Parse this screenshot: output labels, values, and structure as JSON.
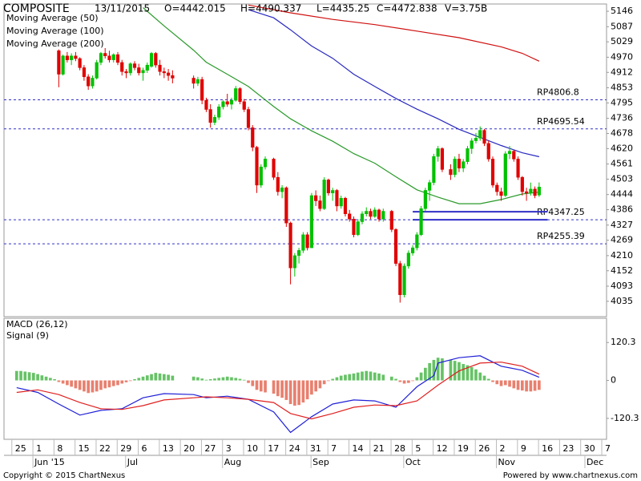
{
  "chart_data": {
    "type": "candlestick",
    "header": [
      "COMPOSITE",
      "13/11/2015",
      "O=4442.015",
      "H=4490.337",
      "L=4435.25",
      "C=4472.838",
      "V=3.75B"
    ],
    "x": [
      "2015-05-25",
      "2015-05-26",
      "2015-05-27",
      "2015-05-28",
      "2015-05-29",
      "2015-06-01",
      "2015-06-02",
      "2015-06-03",
      "2015-06-04",
      "2015-06-05",
      "2015-06-08",
      "2015-06-09",
      "2015-06-10",
      "2015-06-11",
      "2015-06-12",
      "2015-06-15",
      "2015-06-16",
      "2015-06-17",
      "2015-06-18",
      "2015-06-19",
      "2015-06-22",
      "2015-06-23",
      "2015-06-24",
      "2015-06-25",
      "2015-06-26",
      "2015-06-29",
      "2015-06-30",
      "2015-07-01",
      "2015-07-02",
      "2015-07-03",
      "2015-07-06",
      "2015-07-07",
      "2015-07-08",
      "2015-07-09",
      "2015-07-10",
      "2015-07-13",
      "2015-07-14",
      "2015-07-15",
      "2015-07-22",
      "2015-07-23",
      "2015-07-24",
      "2015-07-27",
      "2015-07-28",
      "2015-07-29",
      "2015-07-30",
      "2015-07-31",
      "2015-08-03",
      "2015-08-04",
      "2015-08-05",
      "2015-08-06",
      "2015-08-07",
      "2015-08-10",
      "2015-08-11",
      "2015-08-12",
      "2015-08-13",
      "2015-08-14",
      "2015-08-18",
      "2015-08-19",
      "2015-08-20",
      "2015-08-21",
      "2015-08-24",
      "2015-08-25",
      "2015-08-26",
      "2015-08-27",
      "2015-08-28",
      "2015-08-31",
      "2015-09-01",
      "2015-09-02",
      "2015-09-03",
      "2015-09-04",
      "2015-09-07",
      "2015-09-08",
      "2015-09-09",
      "2015-09-10",
      "2015-09-11",
      "2015-09-14",
      "2015-09-15",
      "2015-09-16",
      "2015-09-17",
      "2015-09-18",
      "2015-09-21",
      "2015-09-22",
      "2015-09-23",
      "2015-09-25",
      "2015-09-28",
      "2015-09-29",
      "2015-09-30",
      "2015-10-01",
      "2015-10-02",
      "2015-10-05",
      "2015-10-06",
      "2015-10-07",
      "2015-10-08",
      "2015-10-09",
      "2015-10-12",
      "2015-10-13",
      "2015-10-15",
      "2015-10-16",
      "2015-10-19",
      "2015-10-20",
      "2015-10-21",
      "2015-10-22",
      "2015-10-23",
      "2015-10-26",
      "2015-10-27",
      "2015-10-28",
      "2015-10-29",
      "2015-10-30",
      "2015-11-02",
      "2015-11-03",
      "2015-11-04",
      "2015-11-05",
      "2015-11-06",
      "2015-11-09",
      "2015-11-10",
      "2015-11-11",
      "2015-11-12",
      "2015-11-13"
    ],
    "open": [
      null,
      null,
      null,
      null,
      null,
      null,
      null,
      null,
      null,
      null,
      4995,
      4905,
      4975,
      4960,
      4975,
      4965,
      4930,
      4895,
      4860,
      4890,
      4950,
      4985,
      4975,
      4960,
      4980,
      4950,
      4915,
      4910,
      4945,
      4930,
      4910,
      4920,
      4935,
      4985,
      4940,
      4915,
      4910,
      4900,
      4890,
      4870,
      4885,
      4805,
      4770,
      4720,
      4740,
      4780,
      4800,
      4790,
      4805,
      4850,
      4800,
      4770,
      4700,
      4625,
      4480,
      4550,
      4580,
      4510,
      4455,
      4470,
      4335,
      4163,
      4210,
      4230,
      4290,
      4240,
      4440,
      4420,
      4390,
      4500,
      4450,
      4460,
      4400,
      4430,
      4370,
      4350,
      4290,
      4340,
      4370,
      4380,
      4360,
      4385,
      4350,
      4380,
      4310,
      4180,
      4060,
      4170,
      4220,
      4240,
      4290,
      4390,
      4460,
      4490,
      4590,
      4620,
      4540,
      4520,
      4580,
      4545,
      4570,
      4620,
      4650,
      4660,
      4690,
      4640,
      4580,
      4480,
      4455,
      4440,
      4600,
      4610,
      4580,
      4510,
      4455,
      4450,
      4465,
      4442.015
    ],
    "high": [
      null,
      null,
      null,
      null,
      null,
      null,
      null,
      null,
      null,
      null,
      5000,
      4980,
      4990,
      4985,
      4990,
      4970,
      4940,
      4905,
      4900,
      4960,
      4990,
      5005,
      4995,
      4985,
      4990,
      4960,
      4925,
      4950,
      4955,
      4945,
      4930,
      4950,
      4990,
      4990,
      4960,
      4930,
      4925,
      4920,
      4900,
      4895,
      4895,
      4815,
      4790,
      4750,
      4790,
      4805,
      4830,
      4815,
      4860,
      4855,
      4810,
      4780,
      4710,
      4630,
      4560,
      4590,
      4585,
      4530,
      4480,
      4475,
      4340,
      4220,
      4240,
      4300,
      4300,
      4450,
      4460,
      4440,
      4510,
      4505,
      4470,
      4465,
      4440,
      4435,
      4385,
      4360,
      4350,
      4380,
      4395,
      4390,
      4395,
      4390,
      4390,
      4385,
      4315,
      4190,
      4180,
      4230,
      4250,
      4300,
      4400,
      4470,
      4500,
      4600,
      4630,
      4625,
      4560,
      4590,
      4600,
      4580,
      4630,
      4660,
      4680,
      4705,
      4695,
      4650,
      4590,
      4490,
      4470,
      4610,
      4630,
      4615,
      4590,
      4515,
      4470,
      4490,
      4475,
      4490.337
    ],
    "low": [
      null,
      null,
      null,
      null,
      null,
      null,
      null,
      null,
      null,
      null,
      4855,
      4900,
      4950,
      4940,
      4955,
      4920,
      4880,
      4845,
      4850,
      4885,
      4940,
      4965,
      4950,
      4950,
      4940,
      4900,
      4890,
      4900,
      4920,
      4900,
      4880,
      4910,
      4930,
      4930,
      4900,
      4890,
      4880,
      4870,
      4850,
      4860,
      4790,
      4760,
      4700,
      4710,
      4730,
      4770,
      4780,
      4770,
      4800,
      4790,
      4760,
      4690,
      4610,
      4450,
      4470,
      4540,
      4500,
      4440,
      4430,
      4320,
      4100,
      4130,
      4180,
      4220,
      4230,
      4240,
      4400,
      4380,
      4385,
      4440,
      4420,
      4380,
      4390,
      4360,
      4340,
      4280,
      4285,
      4330,
      4360,
      4350,
      4355,
      4340,
      4340,
      4300,
      4170,
      4030,
      4050,
      4160,
      4210,
      4230,
      4285,
      4380,
      4420,
      4480,
      4570,
      4530,
      4500,
      4510,
      4530,
      4530,
      4560,
      4600,
      4640,
      4650,
      4630,
      4570,
      4470,
      4440,
      4420,
      4435,
      4580,
      4570,
      4500,
      4440,
      4420,
      4440,
      4430,
      4435.25
    ],
    "close": [
      null,
      null,
      null,
      null,
      null,
      null,
      null,
      null,
      null,
      null,
      4905,
      4975,
      4960,
      4975,
      4965,
      4930,
      4895,
      4860,
      4890,
      4950,
      4985,
      4975,
      4960,
      4980,
      4950,
      4915,
      4910,
      4945,
      4930,
      4910,
      4920,
      4940,
      4985,
      4940,
      4915,
      4910,
      4900,
      4890,
      4870,
      4885,
      4805,
      4770,
      4720,
      4740,
      4780,
      4800,
      4790,
      4805,
      4850,
      4800,
      4770,
      4700,
      4625,
      4480,
      4550,
      4580,
      4510,
      4455,
      4470,
      4335,
      4163,
      4210,
      4230,
      4290,
      4240,
      4440,
      4420,
      4390,
      4500,
      4450,
      4460,
      4400,
      4430,
      4370,
      4350,
      4290,
      4340,
      4370,
      4380,
      4360,
      4385,
      4350,
      4380,
      4310,
      4180,
      4060,
      4170,
      4220,
      4240,
      4290,
      4390,
      4460,
      4490,
      4590,
      4620,
      4540,
      4520,
      4580,
      4545,
      4570,
      4620,
      4650,
      4660,
      4690,
      4640,
      4580,
      4480,
      4455,
      4440,
      4600,
      4610,
      4580,
      4510,
      4455,
      4450,
      4465,
      4440,
      4472.838
    ],
    "up_color": "#00c000",
    "down_color": "#e00000",
    "xlim": [
      "2015-05-20",
      "2015-12-07"
    ],
    "xticks": [
      {
        "value": "2015-05-25",
        "label": "25"
      },
      {
        "value": "2015-06-01",
        "label": "1"
      },
      {
        "value": "2015-06-08",
        "label": "8"
      },
      {
        "value": "2015-06-15",
        "label": "15"
      },
      {
        "value": "2015-06-22",
        "label": "22"
      },
      {
        "value": "2015-06-29",
        "label": "29"
      },
      {
        "value": "2015-07-06",
        "label": "6"
      },
      {
        "value": "2015-07-13",
        "label": "13"
      },
      {
        "value": "2015-07-20",
        "label": "20"
      },
      {
        "value": "2015-07-27",
        "label": "27"
      },
      {
        "value": "2015-08-03",
        "label": "3"
      },
      {
        "value": "2015-08-10",
        "label": "10"
      },
      {
        "value": "2015-08-17",
        "label": "17"
      },
      {
        "value": "2015-08-24",
        "label": "24"
      },
      {
        "value": "2015-08-31",
        "label": "31"
      },
      {
        "value": "2015-09-07",
        "label": "7"
      },
      {
        "value": "2015-09-14",
        "label": "14"
      },
      {
        "value": "2015-09-21",
        "label": "21"
      },
      {
        "value": "2015-09-28",
        "label": "28"
      },
      {
        "value": "2015-10-05",
        "label": "5"
      },
      {
        "value": "2015-10-12",
        "label": "12"
      },
      {
        "value": "2015-10-19",
        "label": "19"
      },
      {
        "value": "2015-10-26",
        "label": "26"
      },
      {
        "value": "2015-11-02",
        "label": "2"
      },
      {
        "value": "2015-11-09",
        "label": "9"
      },
      {
        "value": "2015-11-16",
        "label": "16"
      },
      {
        "value": "2015-11-23",
        "label": "23"
      },
      {
        "value": "2015-11-30",
        "label": "30"
      },
      {
        "value": "2015-12-07",
        "label": "7"
      }
    ],
    "month_labels": [
      {
        "value": "2015-06-01",
        "label": "Jun '15"
      },
      {
        "value": "2015-07-01",
        "label": "Jul"
      },
      {
        "value": "2015-08-01",
        "label": "Aug"
      },
      {
        "value": "2015-09-01",
        "label": "Sep"
      },
      {
        "value": "2015-10-01",
        "label": "Oct"
      },
      {
        "value": "2015-11-01",
        "label": "Nov"
      },
      {
        "value": "2015-12-01",
        "label": "Dec"
      }
    ],
    "ylim": [
      3976.2,
      5173.9
    ],
    "yticks": [
      5146,
      5087,
      5029,
      4970,
      4912,
      4853,
      4795,
      4736,
      4678,
      4620,
      4561,
      4503,
      4444,
      4386,
      4327,
      4269,
      4210,
      4152,
      4093,
      4035
    ],
    "moving_averages": [
      {
        "name": "Moving Average (50)",
        "color": "#2a9a2a",
        "x": [
          "2015-07-06",
          "2015-07-13",
          "2015-07-22",
          "2015-07-27",
          "2015-08-03",
          "2015-08-10",
          "2015-08-18",
          "2015-08-24",
          "2015-08-31",
          "2015-09-07",
          "2015-09-14",
          "2015-09-21",
          "2015-09-28",
          "2015-10-05",
          "2015-10-12",
          "2015-10-19",
          "2015-10-26",
          "2015-11-02",
          "2015-11-09",
          "2015-11-13"
        ],
        "values": [
          5160,
          5090,
          4997,
          4951,
          4905,
          4858,
          4781,
          4734,
          4688,
          4648,
          4601,
          4564,
          4512,
          4462,
          4434,
          4409,
          4409,
          4425,
          4446,
          4453
        ]
      },
      {
        "name": "Moving Average (100)",
        "color": "#2828c0",
        "x": [
          "2015-08-10",
          "2015-08-18",
          "2015-08-24",
          "2015-08-31",
          "2015-09-07",
          "2015-09-14",
          "2015-09-21",
          "2015-09-28",
          "2015-10-05",
          "2015-10-12",
          "2015-10-19",
          "2015-10-26",
          "2015-11-02",
          "2015-11-09",
          "2015-11-13"
        ],
        "values": [
          5152,
          5121,
          5075,
          5013,
          4966,
          4905,
          4858,
          4812,
          4771,
          4734,
          4694,
          4663,
          4632,
          4604,
          4589
        ]
      },
      {
        "name": "Moving Average (200)",
        "color": "#d01010",
        "x": [
          "2015-08-10",
          "2015-08-24",
          "2015-09-07",
          "2015-09-21",
          "2015-10-05",
          "2015-10-19",
          "2015-11-02",
          "2015-11-09",
          "2015-11-13"
        ],
        "values": [
          5170,
          5140,
          5115,
          5095,
          5070,
          5045,
          5010,
          4985,
          4955
        ]
      }
    ],
    "levels": [
      {
        "value": 4806.8,
        "label": "RP4806.8"
      },
      {
        "value": 4695.54,
        "label": "RP4695.54"
      },
      {
        "value": 4347.25,
        "label": "RP4347.25"
      },
      {
        "value": 4255.39,
        "label": "RP4255.39"
      }
    ],
    "level_color": "#3030c8",
    "trendlines": [
      {
        "x": [
          "2015-10-02",
          "2015-11-17"
        ],
        "y": [
          4378,
          4378
        ]
      },
      {
        "x": [
          "2015-10-02",
          "2015-11-17"
        ],
        "y": [
          4347.25,
          4347.25
        ]
      }
    ],
    "macd": {
      "ylim": [
        -186.8,
        197.1
      ],
      "yticks": [
        120.3,
        0,
        -120.3
      ],
      "series": [
        {
          "name": "MACD (26,12)",
          "color": "#2020d8",
          "x": [
            "2015-05-25",
            "2015-06-01",
            "2015-06-08",
            "2015-06-15",
            "2015-06-22",
            "2015-06-29",
            "2015-07-06",
            "2015-07-13",
            "2015-07-22",
            "2015-07-27",
            "2015-08-03",
            "2015-08-10",
            "2015-08-18",
            "2015-08-24",
            "2015-08-31",
            "2015-09-07",
            "2015-09-14",
            "2015-09-21",
            "2015-09-28",
            "2015-10-05",
            "2015-10-09",
            "2015-10-12",
            "2015-10-19",
            "2015-10-26",
            "2015-11-02",
            "2015-11-09",
            "2015-11-13"
          ],
          "values": [
            -23,
            -38,
            -75,
            -110,
            -95,
            -90,
            -55,
            -42,
            -45,
            -55,
            -50,
            -60,
            -100,
            -165,
            -115,
            -75,
            -62,
            -65,
            -85,
            -20,
            15,
            55,
            72,
            78,
            45,
            32,
            10
          ]
        },
        {
          "name": "Signal (9)",
          "color": "#e02020",
          "x": [
            "2015-05-25",
            "2015-06-01",
            "2015-06-08",
            "2015-06-15",
            "2015-06-22",
            "2015-06-29",
            "2015-07-06",
            "2015-07-13",
            "2015-07-27",
            "2015-08-03",
            "2015-08-10",
            "2015-08-18",
            "2015-08-24",
            "2015-08-31",
            "2015-09-07",
            "2015-09-14",
            "2015-09-21",
            "2015-09-28",
            "2015-10-05",
            "2015-10-12",
            "2015-10-19",
            "2015-10-26",
            "2015-11-02",
            "2015-11-09",
            "2015-11-13"
          ],
          "values": [
            -38,
            -30,
            -45,
            -70,
            -90,
            -92,
            -80,
            -62,
            -52,
            -55,
            -60,
            -70,
            -105,
            -122,
            -105,
            -85,
            -78,
            -80,
            -65,
            -15,
            30,
            55,
            58,
            45,
            20
          ]
        }
      ],
      "histogram": [
        30,
        30,
        28,
        26,
        24,
        20,
        16,
        12,
        8,
        4,
        -5,
        -10,
        -15,
        -20,
        -25,
        -30,
        -35,
        -40,
        -38,
        -35,
        -30,
        -25,
        -22,
        -18,
        -15,
        -10,
        -6,
        -2,
        4,
        8,
        12,
        16,
        20,
        24,
        22,
        20,
        18,
        15,
        12,
        10,
        6,
        2,
        4,
        6,
        8,
        10,
        12,
        10,
        8,
        5,
        2,
        -8,
        -18,
        -30,
        -35,
        -38,
        -42,
        -50,
        -55,
        -62,
        -75,
        -80,
        -78,
        -70,
        -60,
        -45,
        -35,
        -25,
        -12,
        -2,
        5,
        10,
        15,
        18,
        20,
        22,
        25,
        28,
        30,
        28,
        25,
        22,
        18,
        12,
        5,
        -5,
        -10,
        -8,
        -2,
        10,
        25,
        40,
        55,
        65,
        72,
        70,
        65,
        62,
        58,
        52,
        48,
        42,
        35,
        25,
        15,
        5,
        -5,
        -12,
        -18,
        -15,
        -20,
        -25,
        -30,
        -32,
        -35,
        -35,
        -33,
        -30
      ],
      "positive_color": "#66c266",
      "negative_color": "#e8806f"
    },
    "footer": {
      "left": "Copyright © 2015 ChartNexus",
      "right": "Powered by www.chartnexus.com"
    }
  }
}
